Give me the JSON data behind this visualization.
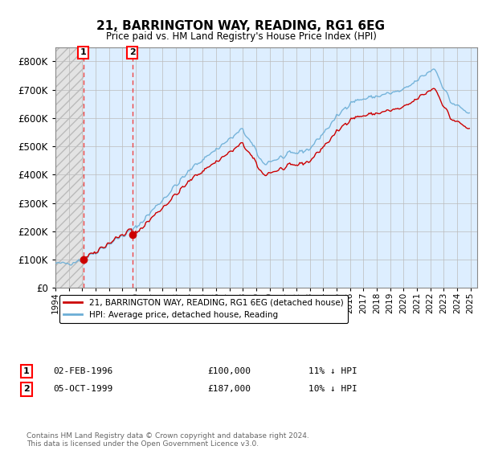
{
  "title": "21, BARRINGTON WAY, READING, RG1 6EG",
  "subtitle": "Price paid vs. HM Land Registry's House Price Index (HPI)",
  "sale1_price": 100000,
  "sale1_label": "1",
  "sale1_hpi_diff": "11% ↓ HPI",
  "sale1_date_str": "02-FEB-1996",
  "sale2_price": 187000,
  "sale2_label": "2",
  "sale2_hpi_diff": "10% ↓ HPI",
  "sale2_date_str": "05-OCT-1999",
  "hpi_line_color": "#6baed6",
  "price_line_color": "#cc0000",
  "marker_color": "#cc0000",
  "dashed_line_color": "#dd4444",
  "hatched_region_color": "#aaaaaa",
  "blue_region_color": "#ddeeff",
  "legend_label_price": "21, BARRINGTON WAY, READING, RG1 6EG (detached house)",
  "legend_label_hpi": "HPI: Average price, detached house, Reading",
  "footer": "Contains HM Land Registry data © Crown copyright and database right 2024.\nThis data is licensed under the Open Government Licence v3.0.",
  "ylim": [
    0,
    850000
  ],
  "yticks": [
    0,
    100000,
    200000,
    300000,
    400000,
    500000,
    600000,
    700000,
    800000
  ],
  "xstart": 1994.0,
  "xend": 2025.5,
  "sale1_year": 1996.08,
  "sale2_year": 1999.75,
  "xtick_years": [
    1994,
    1995,
    1996,
    1997,
    1998,
    1999,
    2000,
    2001,
    2002,
    2003,
    2004,
    2005,
    2006,
    2007,
    2008,
    2009,
    2010,
    2011,
    2012,
    2013,
    2014,
    2015,
    2016,
    2017,
    2018,
    2019,
    2020,
    2021,
    2022,
    2023,
    2024,
    2025
  ]
}
